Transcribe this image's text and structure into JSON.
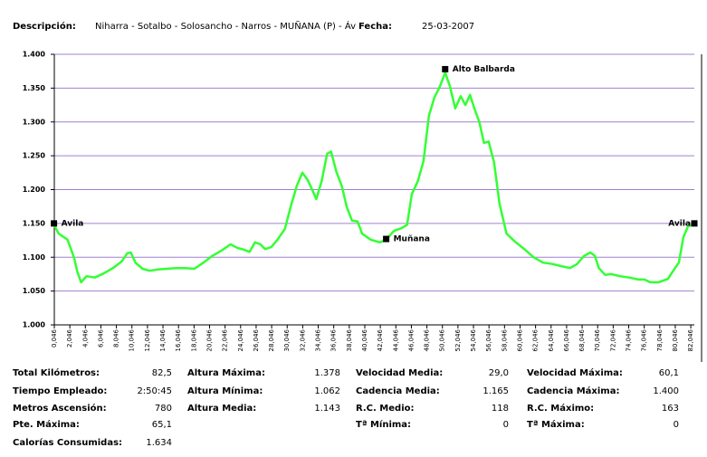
{
  "header": {
    "desc_label": "Descripción:",
    "description": "Niharra - Sotalbo - Solosancho - Narros - MUÑANA (P) - Áv",
    "date_label": "Fecha:",
    "date": "25-03-2007"
  },
  "chart_data": {
    "type": "line",
    "color": "#33ff33",
    "grid": true,
    "x": [
      0,
      0.6,
      1.75,
      2.6,
      3.0,
      3.5,
      4.2,
      5.25,
      6.4,
      7.6,
      8.75,
      9.45,
      9.9,
      10.5,
      11.4,
      12.3,
      13.4,
      14.6,
      15.75,
      16.9,
      18.1,
      19.25,
      20.4,
      21.6,
      22.75,
      23.6,
      24.5,
      25.2,
      25.9,
      26.6,
      27.2,
      28.0,
      28.8,
      29.75,
      30.6,
      31.3,
      32.0,
      32.7,
      33.3,
      33.8,
      34.5,
      35.2,
      35.7,
      36.4,
      37.1,
      37.7,
      38.4,
      39.1,
      39.7,
      40.8,
      42.0,
      42.8,
      43.8,
      44.8,
      45.5,
      46.1,
      46.9,
      47.6,
      48.3,
      49.0,
      49.7,
      50.4,
      51.0,
      51.7,
      52.4,
      53.0,
      53.6,
      54.1,
      54.8,
      55.4,
      56.0,
      56.7,
      57.4,
      58.3,
      59.5,
      60.7,
      61.8,
      63.0,
      64.2,
      65.3,
      66.5,
      67.4,
      68.3,
      69.1,
      69.7,
      70.2,
      71.0,
      71.8,
      72.9,
      74.1,
      75.3,
      76.1,
      76.8,
      77.9,
      79.1,
      79.9,
      80.5,
      81.1,
      81.7,
      82.4
    ],
    "values": [
      1148,
      1135,
      1126,
      1099,
      1079,
      1063,
      1072,
      1070,
      1076,
      1084,
      1094,
      1106,
      1107,
      1092,
      1083,
      1080,
      1082,
      1083,
      1084,
      1084,
      1083,
      1092,
      1102,
      1110,
      1119,
      1114,
      1111,
      1108,
      1122,
      1119,
      1112,
      1115,
      1126,
      1142,
      1179,
      1206,
      1225,
      1214,
      1199,
      1186,
      1213,
      1253,
      1256,
      1226,
      1205,
      1175,
      1154,
      1153,
      1135,
      1126,
      1122,
      1126,
      1139,
      1143,
      1148,
      1193,
      1213,
      1242,
      1309,
      1336,
      1352,
      1373,
      1353,
      1320,
      1338,
      1325,
      1340,
      1322,
      1300,
      1269,
      1271,
      1240,
      1179,
      1135,
      1122,
      1111,
      1100,
      1092,
      1090,
      1087,
      1084,
      1090,
      1102,
      1107,
      1102,
      1084,
      1074,
      1075,
      1072,
      1070,
      1067,
      1067,
      1063,
      1063,
      1068,
      1082,
      1092,
      1130,
      1146,
      1148
    ],
    "xlim": [
      0.046,
      82.5
    ],
    "ylim": [
      1000,
      1400
    ],
    "yticks": [
      {
        "value": 1000,
        "label": "1.000"
      },
      {
        "value": 1050,
        "label": "1.050"
      },
      {
        "value": 1100,
        "label": "1.100"
      },
      {
        "value": 1150,
        "label": "1.150"
      },
      {
        "value": 1200,
        "label": "1.200"
      },
      {
        "value": 1250,
        "label": "1.250"
      },
      {
        "value": 1300,
        "label": "1.300"
      },
      {
        "value": 1350,
        "label": "1.350"
      },
      {
        "value": 1400,
        "label": "1.400"
      }
    ],
    "xticks": [
      {
        "value": 0.046,
        "label": "0,046"
      },
      {
        "value": 2.046,
        "label": "2,046"
      },
      {
        "value": 4.046,
        "label": "4,046"
      },
      {
        "value": 6.046,
        "label": "6,046"
      },
      {
        "value": 8.046,
        "label": "8,046"
      },
      {
        "value": 10.046,
        "label": "10,046"
      },
      {
        "value": 12.046,
        "label": "12,046"
      },
      {
        "value": 14.046,
        "label": "14,046"
      },
      {
        "value": 16.046,
        "label": "16,046"
      },
      {
        "value": 18.046,
        "label": "18,046"
      },
      {
        "value": 20.046,
        "label": "20,046"
      },
      {
        "value": 22.046,
        "label": "22,046"
      },
      {
        "value": 24.046,
        "label": "24,046"
      },
      {
        "value": 26.046,
        "label": "26,046"
      },
      {
        "value": 28.046,
        "label": "28,046"
      },
      {
        "value": 30.046,
        "label": "30,046"
      },
      {
        "value": 32.046,
        "label": "32,046"
      },
      {
        "value": 34.046,
        "label": "34,046"
      },
      {
        "value": 36.046,
        "label": "36,046"
      },
      {
        "value": 38.046,
        "label": "38,046"
      },
      {
        "value": 40.046,
        "label": "40,046"
      },
      {
        "value": 42.046,
        "label": "42,046"
      },
      {
        "value": 44.046,
        "label": "44,046"
      },
      {
        "value": 46.046,
        "label": "46,046"
      },
      {
        "value": 48.046,
        "label": "48,046"
      },
      {
        "value": 50.046,
        "label": "50,046"
      },
      {
        "value": 52.046,
        "label": "52,046"
      },
      {
        "value": 54.046,
        "label": "54,046"
      },
      {
        "value": 56.046,
        "label": "56,046"
      },
      {
        "value": 58.046,
        "label": "58,046"
      },
      {
        "value": 60.046,
        "label": "60,046"
      },
      {
        "value": 62.046,
        "label": "62,046"
      },
      {
        "value": 64.046,
        "label": "64,046"
      },
      {
        "value": 66.046,
        "label": "66,046"
      },
      {
        "value": 68.046,
        "label": "68,046"
      },
      {
        "value": 70.046,
        "label": "70,046"
      },
      {
        "value": 72.046,
        "label": "72,046"
      },
      {
        "value": 74.046,
        "label": "74,046"
      },
      {
        "value": 76.046,
        "label": "76,046"
      },
      {
        "value": 78.046,
        "label": "78,046"
      },
      {
        "value": 80.046,
        "label": "80,046"
      },
      {
        "value": 82.046,
        "label": "82,046"
      }
    ],
    "annotations": [
      {
        "text": "Avila",
        "x": 0,
        "y": 1150
      },
      {
        "text": "Muñana",
        "x": 42.8,
        "y": 1127
      },
      {
        "text": "Alto Balbarda",
        "x": 50.4,
        "y": 1378
      },
      {
        "text": "Avila",
        "x": 82.5,
        "y": 1150
      }
    ]
  },
  "stats": [
    [
      {
        "label": "Total Kilómetros:",
        "value": "82,5"
      },
      {
        "label": "Tiempo Empleado:",
        "value": "2:50:45"
      },
      {
        "label": "Metros Ascensión:",
        "value": "780"
      },
      {
        "label": "Pte. Máxima:",
        "value": "65,1"
      },
      {
        "label": "Calorías Consumidas:",
        "value": "1.634"
      }
    ],
    [
      {
        "label": "Altura Máxima:",
        "value": "1.378"
      },
      {
        "label": "Altura Mínima:",
        "value": "1.062"
      },
      {
        "label": "Altura Media:",
        "value": "1.143"
      }
    ],
    [
      {
        "label": "Velocidad Media:",
        "value": "29,0"
      },
      {
        "label": "Cadencia Media:",
        "value": "1.165"
      },
      {
        "label": "R.C. Medio:",
        "value": "118"
      },
      {
        "label": "Tª Mínima:",
        "value": "0"
      }
    ],
    [
      {
        "label": "Velocidad Máxima:",
        "value": "60,1"
      },
      {
        "label": "Cadencia Máxima:",
        "value": "1.400"
      },
      {
        "label": "R.C. Máximo:",
        "value": "163"
      },
      {
        "label": "Tª Máxima:",
        "value": "0"
      }
    ]
  ]
}
